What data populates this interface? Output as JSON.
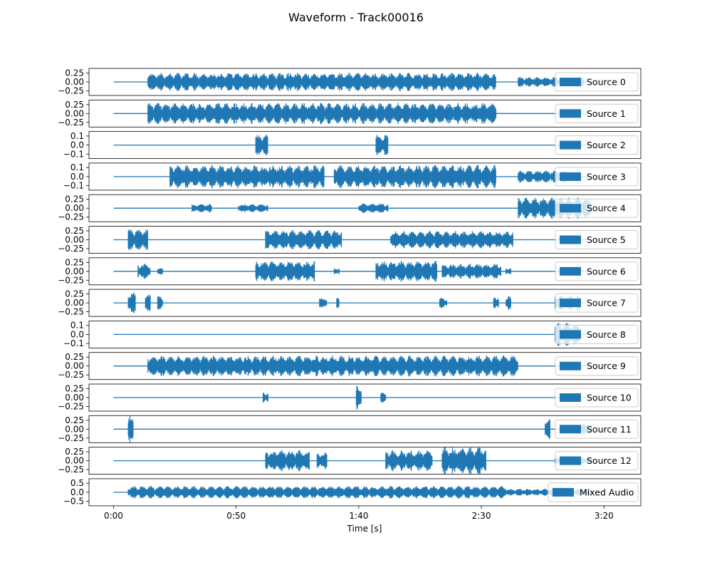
{
  "chart_data": {
    "type": "line",
    "title": "Waveform - Track00016",
    "xlabel": "Time [s]",
    "xlim": [
      -10,
      215
    ],
    "x_ticks": [
      {
        "value": 0,
        "label": "0:00"
      },
      {
        "value": 50,
        "label": "0:50"
      },
      {
        "value": 100,
        "label": "1:40"
      },
      {
        "value": 150,
        "label": "2:30"
      },
      {
        "value": 200,
        "label": "3:20"
      }
    ],
    "line_color": "#1f77b4",
    "signal_end": 195,
    "legend_position": "right",
    "series": [
      {
        "name": "Source 0",
        "ylim": [
          -0.38,
          0.38
        ],
        "yticks": [
          0.25,
          0,
          -0.25
        ],
        "ytick_labels": [
          "0.25",
          "0.00",
          "−0.25"
        ],
        "segments": [
          [
            14,
            156,
            0.26
          ],
          [
            165,
            192,
            0.14
          ]
        ]
      },
      {
        "name": "Source 1",
        "ylim": [
          -0.38,
          0.38
        ],
        "yticks": [
          0.25,
          0,
          -0.25
        ],
        "ytick_labels": [
          "0.25",
          "0.00",
          "−0.25"
        ],
        "segments": [
          [
            14,
            60,
            0.3
          ],
          [
            60,
            156,
            0.3
          ]
        ]
      },
      {
        "name": "Source 2",
        "ylim": [
          -0.15,
          0.15
        ],
        "yticks": [
          0.1,
          0,
          -0.1
        ],
        "ytick_labels": [
          "0.1",
          "0.0",
          "−0.1"
        ],
        "segments": [
          [
            58,
            63,
            0.12
          ],
          [
            107,
            112,
            0.12
          ]
        ]
      },
      {
        "name": "Source 3",
        "ylim": [
          -0.15,
          0.15
        ],
        "yticks": [
          0.1,
          0,
          -0.1
        ],
        "ytick_labels": [
          "0.1",
          "0.0",
          "−0.1"
        ],
        "segments": [
          [
            23,
            86,
            0.13
          ],
          [
            90,
            156,
            0.13
          ],
          [
            165,
            185,
            0.07
          ]
        ]
      },
      {
        "name": "Source 4",
        "ylim": [
          -0.38,
          0.38
        ],
        "yticks": [
          0.25,
          0,
          -0.25
        ],
        "ytick_labels": [
          "0.25",
          "0.00",
          "−0.25"
        ],
        "segments": [
          [
            32,
            40,
            0.12
          ],
          [
            51,
            63,
            0.12
          ],
          [
            100,
            112,
            0.14
          ],
          [
            165,
            195,
            0.3
          ]
        ]
      },
      {
        "name": "Source 5",
        "ylim": [
          -0.38,
          0.38
        ],
        "yticks": [
          0.25,
          0,
          -0.25
        ],
        "ytick_labels": [
          "0.25",
          "0.00",
          "−0.25"
        ],
        "segments": [
          [
            6,
            14,
            0.3
          ],
          [
            62,
            93,
            0.28
          ],
          [
            113,
            163,
            0.25
          ]
        ]
      },
      {
        "name": "Source 6",
        "ylim": [
          -0.38,
          0.38
        ],
        "yticks": [
          0.25,
          0,
          -0.25
        ],
        "ytick_labels": [
          "0.25",
          "0.00",
          "−0.25"
        ],
        "segments": [
          [
            10,
            15,
            0.22
          ],
          [
            18,
            20,
            0.1
          ],
          [
            58,
            82,
            0.3
          ],
          [
            90,
            92,
            0.1
          ],
          [
            107,
            132,
            0.3
          ],
          [
            134,
            158,
            0.22
          ],
          [
            160,
            162,
            0.1
          ]
        ]
      },
      {
        "name": "Source 7",
        "ylim": [
          -0.38,
          0.38
        ],
        "yticks": [
          0.25,
          0,
          -0.25
        ],
        "ytick_labels": [
          "0.25",
          "0.00",
          "−0.25"
        ],
        "segments": [
          [
            6,
            9,
            0.3
          ],
          [
            13,
            15,
            0.3
          ],
          [
            18,
            20,
            0.2
          ],
          [
            84,
            87,
            0.15
          ],
          [
            91,
            92,
            0.15
          ],
          [
            133,
            136,
            0.15
          ],
          [
            155,
            157,
            0.2
          ],
          [
            160,
            162,
            0.2
          ],
          [
            180,
            190,
            0.22
          ]
        ]
      },
      {
        "name": "Source 8",
        "ylim": [
          -0.15,
          0.15
        ],
        "yticks": [
          0.1,
          0,
          -0.1
        ],
        "ytick_labels": [
          "0.1",
          "0.0",
          "−0.1"
        ],
        "segments": [
          [
            180,
            190,
            0.13
          ]
        ]
      },
      {
        "name": "Source 9",
        "ylim": [
          -0.38,
          0.38
        ],
        "yticks": [
          0.25,
          0,
          -0.25
        ],
        "ytick_labels": [
          "0.25",
          "0.00",
          "−0.25"
        ],
        "segments": [
          [
            14,
            165,
            0.3
          ]
        ]
      },
      {
        "name": "Source 10",
        "ylim": [
          -0.38,
          0.38
        ],
        "yticks": [
          0.25,
          0,
          -0.25
        ],
        "ytick_labels": [
          "0.25",
          "0.00",
          "−0.25"
        ],
        "segments": [
          [
            61,
            63,
            0.15
          ],
          [
            99,
            101,
            0.35
          ],
          [
            109,
            111,
            0.15
          ]
        ]
      },
      {
        "name": "Source 11",
        "ylim": [
          -0.38,
          0.38
        ],
        "yticks": [
          0.25,
          0,
          -0.25
        ],
        "ytick_labels": [
          "0.25",
          "0.00",
          "−0.25"
        ],
        "segments": [
          [
            6,
            8,
            0.38
          ],
          [
            176,
            178,
            0.3
          ],
          [
            190,
            195,
            0.15
          ]
        ]
      },
      {
        "name": "Source 12",
        "ylim": [
          -0.38,
          0.38
        ],
        "yticks": [
          0.25,
          0,
          -0.25
        ],
        "ytick_labels": [
          "0.25",
          "0.00",
          "−0.25"
        ],
        "segments": [
          [
            62,
            80,
            0.3
          ],
          [
            83,
            87,
            0.25
          ],
          [
            111,
            130,
            0.3
          ],
          [
            134,
            152,
            0.38
          ],
          [
            180,
            195,
            0.1
          ]
        ]
      },
      {
        "name": "Mixed Audio",
        "ylim": [
          -0.75,
          0.75
        ],
        "yticks": [
          0.5,
          0,
          -0.5
        ],
        "ytick_labels": [
          "0.5",
          "0.0",
          "−0.5"
        ],
        "segments": [
          [
            6,
            160,
            0.35
          ],
          [
            160,
            195,
            0.2
          ]
        ]
      }
    ]
  }
}
